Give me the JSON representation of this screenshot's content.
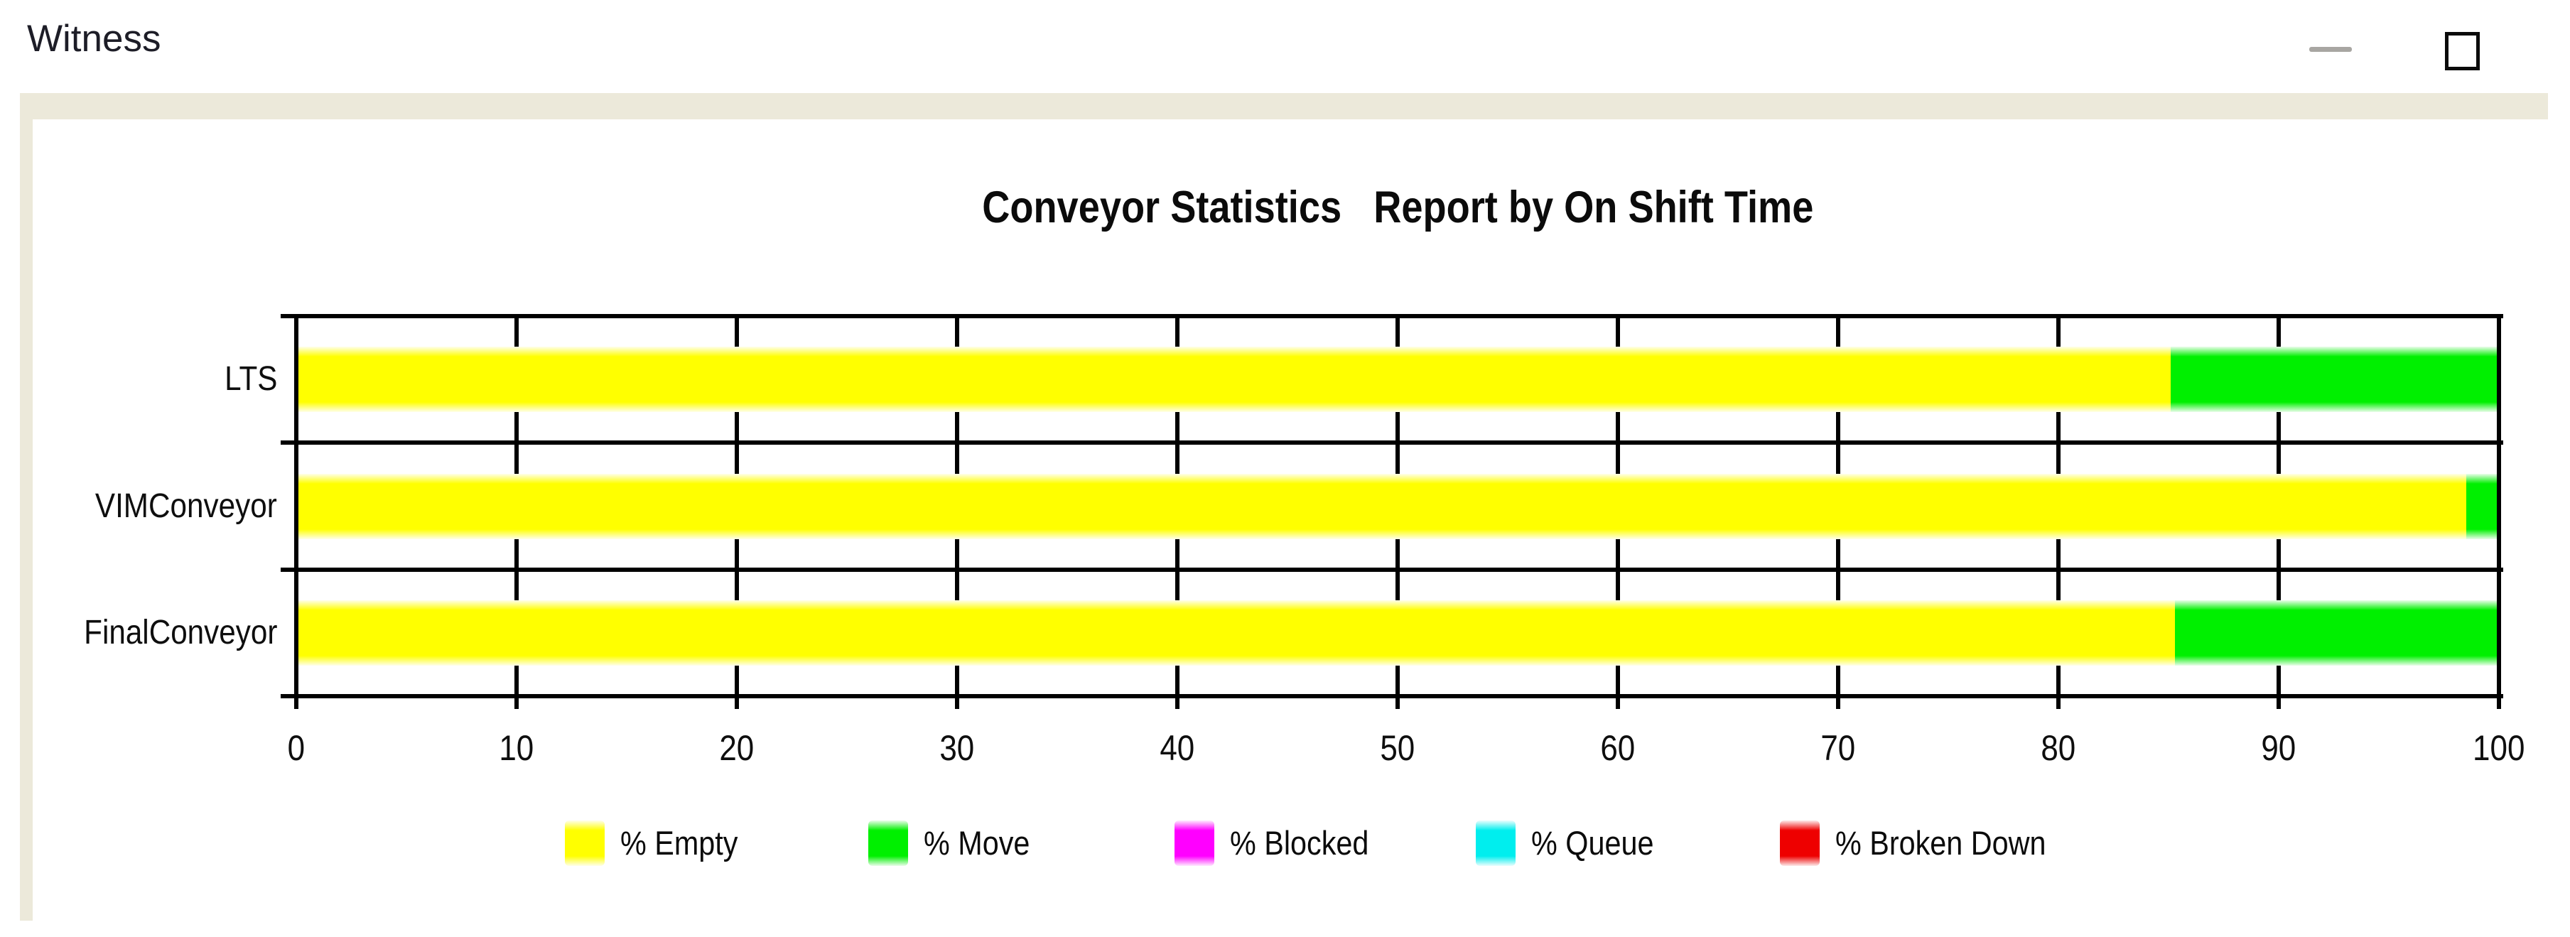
{
  "window": {
    "title": "Witness",
    "controls": [
      {
        "icon": "minimize-icon"
      },
      {
        "icon": "maximize-icon"
      }
    ]
  },
  "chart_data": {
    "type": "bar",
    "orientation": "horizontal",
    "stacked": true,
    "title": "Conveyor Statistics   Report by On Shift Time",
    "categories": [
      "LTS",
      "VIMConveyor",
      "FinalConveyor"
    ],
    "series": [
      {
        "name": "% Empty",
        "color": "#ffff00",
        "values": [
          85.1,
          98.5,
          85.3
        ]
      },
      {
        "name": "% Move",
        "color": "#00f000",
        "values": [
          14.9,
          1.5,
          14.7
        ]
      },
      {
        "name": "% Blocked",
        "color": "#ff00ff",
        "values": [
          0,
          0,
          0
        ]
      },
      {
        "name": "% Queue",
        "color": "#00eeee",
        "values": [
          0,
          0,
          0
        ]
      },
      {
        "name": "% Broken Down",
        "color": "#ee0000",
        "values": [
          0,
          0,
          0
        ]
      }
    ],
    "xlim": [
      0,
      100
    ],
    "x_ticks": [
      0,
      10,
      20,
      30,
      40,
      50,
      60,
      70,
      80,
      90,
      100
    ],
    "grid": true,
    "legend_position": "bottom"
  }
}
